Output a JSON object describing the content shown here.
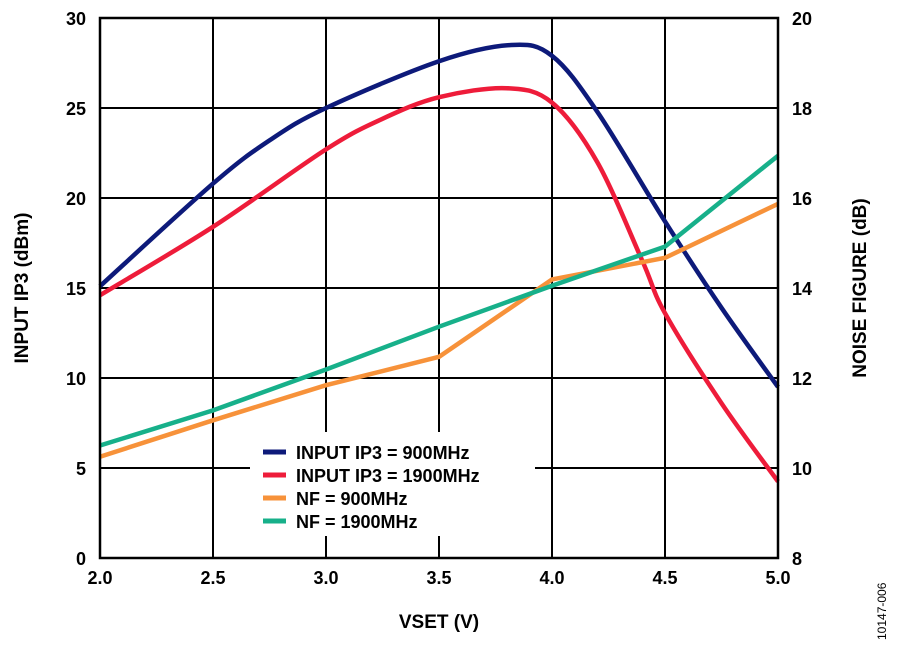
{
  "chart_data": {
    "type": "line",
    "title": "",
    "xlabel": "VSET (V)",
    "ylabel": "INPUT IP3 (dBm)",
    "y2label": "NOISE FIGURE (dB)",
    "xlim": [
      2.0,
      5.0
    ],
    "ylim": [
      0,
      30
    ],
    "y2lim": [
      8,
      20
    ],
    "grid": true,
    "legend_placement": "bottom-center",
    "x_ticks": [
      "2.0",
      "2.5",
      "3.0",
      "3.5",
      "4.0",
      "4.5",
      "5.0"
    ],
    "y_ticks": [
      "0",
      "5",
      "10",
      "15",
      "20",
      "25",
      "30"
    ],
    "y2_ticks": [
      "8",
      "10",
      "12",
      "14",
      "16",
      "18",
      "20"
    ],
    "annotation": "10147-006",
    "series": [
      {
        "name": "INPUT IP3 = 900MHz",
        "axis": "left",
        "color": "#0d1a7a",
        "smooth": true,
        "x": [
          2.0,
          2.5,
          2.75,
          3.0,
          3.5,
          3.82,
          4.0,
          4.2,
          4.5,
          4.75,
          5.0
        ],
        "y": [
          15.1,
          20.8,
          23.2,
          25.0,
          27.6,
          28.5,
          27.9,
          24.8,
          18.7,
          13.9,
          9.5
        ]
      },
      {
        "name": "INPUT IP3 = 1900MHz",
        "axis": "left",
        "color": "#ee1c3a",
        "smooth": true,
        "x": [
          2.0,
          2.5,
          3.0,
          3.25,
          3.5,
          3.8,
          4.0,
          4.2,
          4.4,
          4.5,
          4.75,
          5.0
        ],
        "y": [
          14.6,
          18.4,
          22.7,
          24.4,
          25.6,
          26.1,
          25.3,
          22.0,
          16.5,
          13.6,
          8.6,
          4.25
        ]
      },
      {
        "name": "NF = 900MHz",
        "axis": "right",
        "color": "#f7923a",
        "smooth": false,
        "x": [
          2.0,
          2.5,
          3.0,
          3.5,
          4.0,
          4.5,
          5.0
        ],
        "y": [
          10.25,
          11.06,
          11.84,
          12.47,
          14.19,
          14.67,
          15.87
        ]
      },
      {
        "name": "NF = 1900MHz",
        "axis": "right",
        "color": "#17b08a",
        "smooth": false,
        "x": [
          2.0,
          2.5,
          3.0,
          3.5,
          4.0,
          4.5,
          5.0
        ],
        "y": [
          10.5,
          11.28,
          12.19,
          13.14,
          14.05,
          14.92,
          16.94
        ]
      }
    ]
  }
}
